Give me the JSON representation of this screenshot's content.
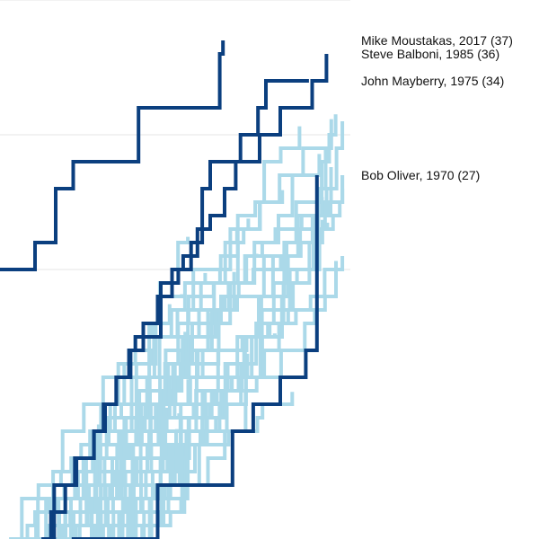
{
  "chart_data": {
    "type": "line",
    "title": "",
    "xlabel": "",
    "ylabel": "",
    "step": true,
    "grid": true,
    "gridlines_y": [
      20,
      30,
      40
    ],
    "xlim": [
      0,
      22
    ],
    "ylim": [
      0,
      40
    ],
    "colors": {
      "highlight": "#0b3f7f",
      "background": "#abd9e9",
      "grid": "#e6e6e6"
    },
    "highlight_series": [
      {
        "name": "Mike Moustakas, 2017 (37)",
        "label": "Mike Moustakas, 2017 (37)",
        "label_value": 37,
        "x": [
          0,
          1.6,
          2.2,
          3.5,
          4.6,
          8.7,
          13.8,
          14
        ],
        "y": [
          20,
          20,
          22,
          26,
          28,
          32,
          36,
          37
        ]
      },
      {
        "name": "Steve Balboni, 1985 (36)",
        "label": "Steve Balboni, 1985 (36)",
        "label_value": 36,
        "x": [
          2.6,
          3.2,
          4.1,
          4.7,
          5.9,
          6.6,
          7.3,
          8.2,
          9.0,
          9.9,
          10.8,
          11.5,
          12.4,
          13.2,
          14.1,
          14.8,
          16.3,
          17.6,
          19.6,
          20.5
        ],
        "y": [
          0,
          2,
          4,
          6,
          8,
          10,
          12,
          14,
          16,
          18,
          20,
          21,
          23,
          24,
          26,
          28,
          30,
          32,
          34,
          36
        ]
      },
      {
        "name": "John Mayberry, 1975 (34)",
        "label": "John Mayberry, 1975 (34)",
        "label_value": 34,
        "x": [
          3.2,
          3.4,
          4.8,
          5.9,
          6.5,
          7.3,
          8.1,
          8.5,
          10.1,
          11.2,
          12.0,
          12.7,
          13.2,
          15.1,
          16.2,
          16.7,
          18.8,
          19.4
        ],
        "y": [
          0,
          4,
          6,
          8,
          10,
          12,
          14,
          15,
          19,
          20,
          22,
          26,
          28,
          30,
          32,
          34,
          34,
          34
        ]
      },
      {
        "name": "Bob Oliver, 1970 (27)",
        "label": "Bob Oliver, 1970 (27)",
        "label_value": 27,
        "x": [
          4.5,
          9.9,
          14.6,
          15.9,
          17.6,
          19.2,
          19.9
        ],
        "y": [
          0,
          4,
          8,
          10,
          12,
          14,
          27
        ]
      }
    ]
  }
}
